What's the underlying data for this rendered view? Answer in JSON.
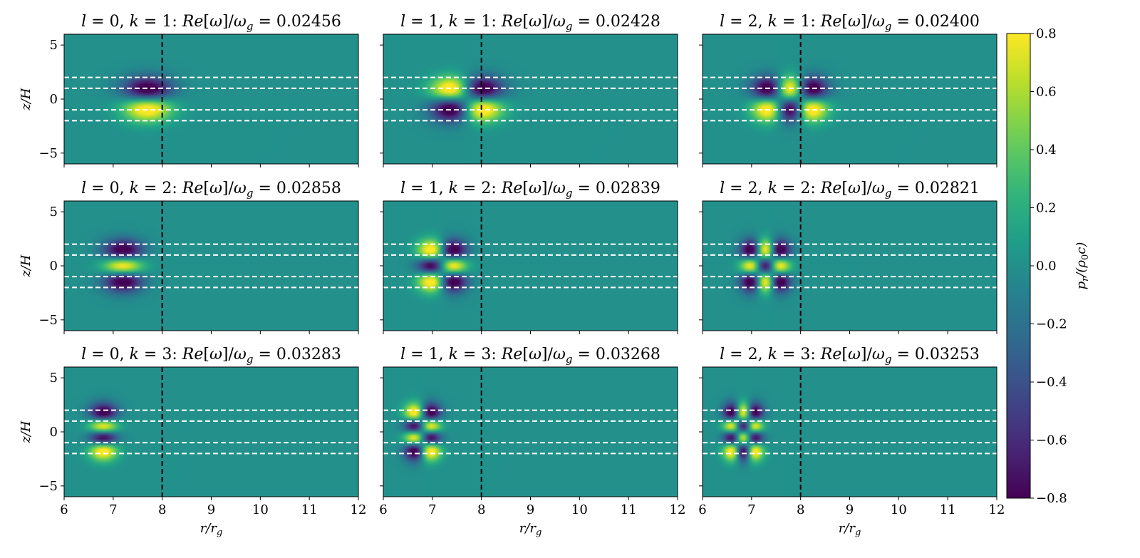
{
  "chart_data": {
    "type": "heatmap",
    "layout": {
      "rows": 3,
      "cols": 3
    },
    "colormap": "viridis",
    "x": {
      "label": "r/r_g",
      "range": [
        6,
        12
      ],
      "ticks": [
        6,
        7,
        8,
        9,
        10,
        11,
        12
      ]
    },
    "y": {
      "label": "z/H",
      "range": [
        -6,
        6
      ],
      "ticks": [
        -5,
        0,
        5
      ]
    },
    "colorbar": {
      "label": "p_r/(ρ_0 c)",
      "range": [
        -0.8,
        0.8
      ],
      "ticks": [
        "0.8",
        "0.6",
        "0.4",
        "0.2",
        "0.0",
        "−0.2",
        "−0.4",
        "−0.6",
        "−0.8"
      ]
    },
    "reference_lines": {
      "vertical_r": 8,
      "vertical_style": "black dashed",
      "horizontal_z": [
        2,
        1,
        -1,
        -2
      ],
      "horizontal_style": "white dashed"
    },
    "panels": [
      {
        "l": 0,
        "k": 1,
        "title_prefix": "l = 0, k = 1:",
        "freq_value": "0.02456",
        "rc": 7.7,
        "sr": 0.35,
        "nz": 1
      },
      {
        "l": 1,
        "k": 1,
        "title_prefix": "l = 1, k = 1:",
        "freq_value": "0.02428",
        "rc": 7.7,
        "sr": 0.35,
        "nz": 1
      },
      {
        "l": 2,
        "k": 1,
        "title_prefix": "l = 2, k = 1:",
        "freq_value": "0.02400",
        "rc": 7.78,
        "sr": 0.3,
        "nz": 1
      },
      {
        "l": 0,
        "k": 2,
        "title_prefix": "l = 0, k = 2:",
        "freq_value": "0.02858",
        "rc": 7.2,
        "sr": 0.28,
        "nz": 2
      },
      {
        "l": 1,
        "k": 2,
        "title_prefix": "l = 1, k = 2:",
        "freq_value": "0.02839",
        "rc": 7.2,
        "sr": 0.24,
        "nz": 2
      },
      {
        "l": 2,
        "k": 2,
        "title_prefix": "l = 2, k = 2:",
        "freq_value": "0.02821",
        "rc": 7.28,
        "sr": 0.2,
        "nz": 2
      },
      {
        "l": 0,
        "k": 3,
        "title_prefix": "l = 0, k = 3:",
        "freq_value": "0.03283",
        "rc": 6.8,
        "sr": 0.2,
        "nz": 3
      },
      {
        "l": 1,
        "k": 3,
        "title_prefix": "l = 1, k = 3:",
        "freq_value": "0.03268",
        "rc": 6.8,
        "sr": 0.18,
        "nz": 3
      },
      {
        "l": 2,
        "k": 3,
        "title_prefix": "l = 2, k = 3:",
        "freq_value": "0.03253",
        "rc": 6.83,
        "sr": 0.16,
        "nz": 3
      }
    ]
  }
}
